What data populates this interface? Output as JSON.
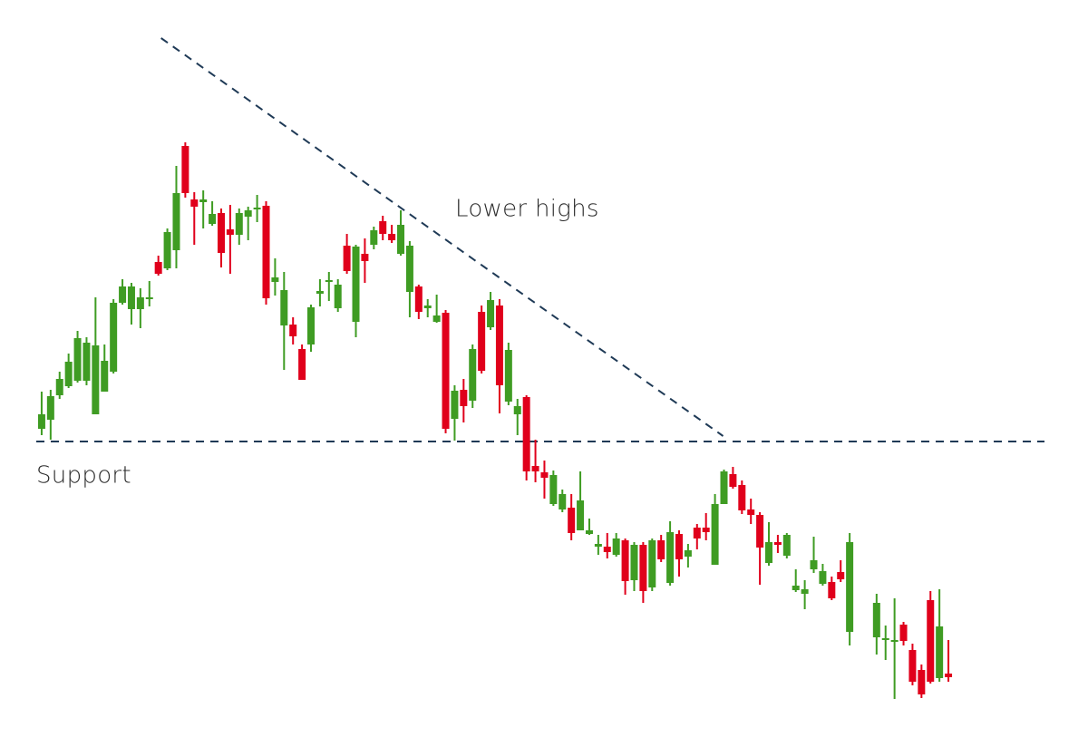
{
  "chart_data": {
    "type": "candlestick",
    "up_color": "#3f9c23",
    "down_color": "#e0001b",
    "line_color": "#1f3a56",
    "xlim": [
      -0.6,
      111.7
    ],
    "ylim": [
      0,
      824
    ],
    "x": [
      0,
      1,
      2,
      3,
      4,
      5,
      6,
      7,
      8,
      9,
      10,
      11,
      12,
      13,
      14,
      15,
      16,
      17,
      18,
      19,
      20,
      21,
      22,
      23,
      24,
      25,
      26,
      27,
      28,
      29,
      30,
      31,
      32,
      33,
      34,
      35,
      36,
      37,
      38,
      39,
      40,
      41,
      42,
      43,
      44,
      45,
      46,
      47,
      48,
      49,
      50,
      51,
      52,
      53,
      54,
      55,
      56,
      57,
      58,
      59,
      60,
      61,
      62,
      63,
      64,
      65,
      66,
      67,
      68,
      69,
      70,
      71,
      72,
      73,
      74,
      75,
      76,
      77,
      78,
      79,
      80,
      81,
      82,
      83,
      84,
      85,
      86,
      87,
      88,
      89,
      90,
      93,
      94,
      95,
      96,
      97,
      98,
      99,
      100,
      101
    ],
    "open": [
      351,
      361,
      388,
      398,
      404,
      404,
      367,
      392,
      414,
      490,
      483,
      483,
      494,
      535,
      528,
      548,
      663,
      604,
      601,
      577,
      589,
      571,
      565,
      585,
      593,
      597,
      513,
      465,
      466,
      439,
      444,
      500,
      513,
      484,
      553,
      469,
      544,
      554,
      580,
      566,
      544,
      502,
      508,
      484,
      469,
      479,
      362,
      394,
      382,
      480,
      463,
      487,
      381,
      367,
      386,
      310,
      303,
      268,
      262,
      264,
      239,
      235,
      221,
      221,
      212,
      228,
      184,
      223,
      176,
      228,
      181,
      235,
      210,
      242,
      242,
      201,
      268,
      301,
      289,
      262,
      256,
      203,
      226,
      211,
      173,
      169,
      196,
      180,
      182,
      193,
      127,
      121,
      118,
      117,
      135,
      107,
      85,
      162,
      76,
      81
    ],
    "high": [
      392,
      394,
      414,
      434,
      459,
      452,
      496,
      444,
      494,
      516,
      512,
      506,
      514,
      542,
      572,
      641,
      667,
      612,
      614,
      602,
      594,
      598,
      594,
      596,
      609,
      602,
      539,
      524,
      474,
      444,
      488,
      516,
      524,
      516,
      566,
      554,
      561,
      574,
      586,
      576,
      592,
      558,
      510,
      494,
      499,
      482,
      399,
      406,
      444,
      487,
      502,
      494,
      446,
      384,
      388,
      339,
      316,
      305,
      284,
      279,
      304,
      252,
      234,
      236,
      236,
      230,
      226,
      226,
      230,
      234,
      249,
      239,
      224,
      246,
      258,
      279,
      306,
      309,
      294,
      274,
      259,
      248,
      234,
      236,
      196,
      184,
      232,
      202,
      188,
      206,
      236,
      169,
      134,
      164,
      138,
      114,
      91,
      172,
      174,
      118
    ],
    "low": [
      344,
      339,
      384,
      396,
      402,
      399,
      367,
      392,
      412,
      488,
      466,
      462,
      486,
      520,
      526,
      528,
      606,
      554,
      572,
      575,
      529,
      522,
      554,
      559,
      579,
      488,
      498,
      416,
      444,
      405,
      436,
      486,
      492,
      480,
      522,
      452,
      512,
      549,
      559,
      556,
      542,
      474,
      472,
      474,
      468,
      346,
      338,
      358,
      374,
      412,
      460,
      368,
      377,
      344,
      294,
      292,
      274,
      266,
      259,
      228,
      239,
      234,
      212,
      208,
      210,
      168,
      172,
      159,
      172,
      204,
      178,
      188,
      198,
      218,
      228,
      201,
      268,
      285,
      257,
      246,
      179,
      200,
      214,
      208,
      171,
      152,
      192,
      178,
      162,
      182,
      112,
      102,
      96,
      53,
      112,
      68,
      54,
      70,
      72,
      72
    ],
    "close": [
      367,
      387,
      406,
      425,
      451,
      446,
      443,
      426,
      490,
      508,
      508,
      496,
      496,
      522,
      568,
      611,
      611,
      596,
      604,
      588,
      545,
      565,
      589,
      592,
      595,
      495,
      518,
      504,
      453,
      405,
      485,
      503,
      515,
      510,
      525,
      552,
      536,
      570,
      566,
      559,
      576,
      553,
      480,
      487,
      476,
      351,
      393,
      376,
      439,
      415,
      493,
      399,
      438,
      376,
      304,
      304,
      297,
      300,
      279,
      236,
      272,
      239,
      224,
      215,
      230,
      183,
      223,
      172,
      228,
      207,
      237,
      207,
      217,
      230,
      237,
      268,
      304,
      287,
      261,
      256,
      220,
      226,
      223,
      234,
      178,
      174,
      206,
      194,
      164,
      185,
      226,
      159,
      120,
      118,
      117,
      72,
      58,
      72,
      133,
      77
    ],
    "trendline": {
      "label": "Lower highs",
      "x": [
        13.3,
        75.9
      ],
      "y": [
        782,
        343
      ]
    },
    "support": {
      "label": "Support",
      "value": 337,
      "x": [
        -0.6,
        111.7
      ]
    }
  }
}
